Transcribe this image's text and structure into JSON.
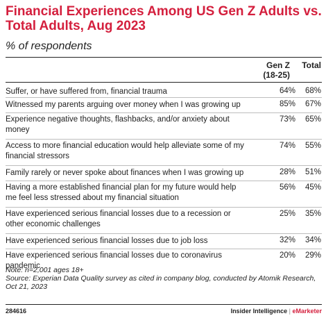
{
  "title": "Financial Experiences Among US Gen Z Adults vs. Total Adults, Aug 2023",
  "subtitle": "% of respondents",
  "columns": {
    "gen_z_line1": "Gen Z",
    "gen_z_line2": "(18-25)",
    "total": "Total"
  },
  "rows": [
    {
      "label": "Suffer, or have suffered from, financial trauma",
      "gen_z": "64%",
      "total": "68%"
    },
    {
      "label": "Witnessed my parents arguing over money when I was growing up",
      "gen_z": "85%",
      "total": "67%"
    },
    {
      "label": "Experience negative thoughts, flashbacks, and/or anxiety about money",
      "gen_z": "73%",
      "total": "65%"
    },
    {
      "label": "Access to more financial education would help alleviate some of my financial stressors",
      "gen_z": "74%",
      "total": "55%"
    },
    {
      "label": "Family rarely or never spoke about finances when I was growing up",
      "gen_z": "28%",
      "total": "51%"
    },
    {
      "label": "Having a more established financial plan for my future would help me feel less stressed about my financial situation",
      "gen_z": "56%",
      "total": "45%"
    },
    {
      "label": "Have experienced serious financial losses due to a recession or other economic challenges",
      "gen_z": "25%",
      "total": "35%"
    },
    {
      "label": "Have experienced serious financial losses due to job loss",
      "gen_z": "32%",
      "total": "34%"
    },
    {
      "label": "Have experienced serious financial losses due to coronavirus pandemic",
      "gen_z": "20%",
      "total": "29%"
    }
  ],
  "note": "Note: n=2,001 ages 18+",
  "source": "Source: Experian Data Quality survey as cited in company blog, conducted by Atomik Research, Oct 21, 2023",
  "footer": {
    "chart_id": "284616",
    "brand_left": "Insider Intelligence",
    "brand_divider": "|",
    "brand_right": "eMarketer"
  },
  "colors": {
    "title": "#d41f3d",
    "text": "#222222",
    "row_divider": "#bdbdbd"
  },
  "chart_data": {
    "type": "table",
    "title": "Financial Experiences Among US Gen Z Adults vs. Total Adults, Aug 2023",
    "subtitle": "% of respondents",
    "categories": [
      "Suffer, or have suffered from, financial trauma",
      "Witnessed my parents arguing over money when I was growing up",
      "Experience negative thoughts, flashbacks, and/or anxiety about money",
      "Access to more financial education would help alleviate some of my financial stressors",
      "Family rarely or never spoke about finances when I was growing up",
      "Having a more established financial plan for my future would help me feel less stressed about my financial situation",
      "Have experienced serious financial losses due to a recession or other economic challenges",
      "Have experienced serious financial losses due to job loss",
      "Have experienced serious financial losses due to coronavirus pandemic"
    ],
    "series": [
      {
        "name": "Gen Z (18-25)",
        "values": [
          64,
          85,
          73,
          74,
          28,
          56,
          25,
          32,
          20
        ]
      },
      {
        "name": "Total",
        "values": [
          68,
          67,
          65,
          55,
          51,
          45,
          35,
          34,
          29
        ]
      }
    ]
  }
}
